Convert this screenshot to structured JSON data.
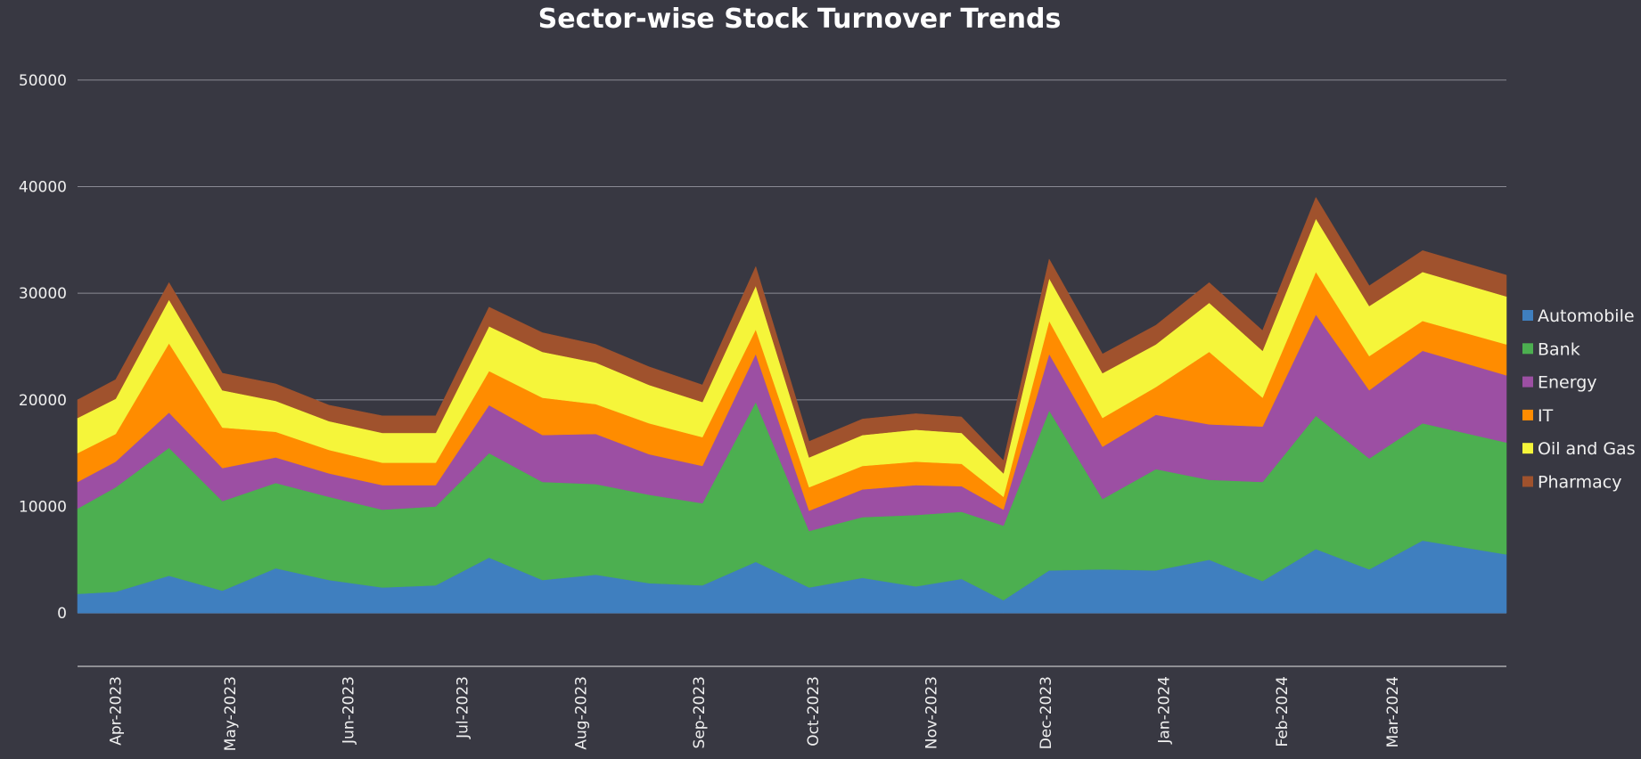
{
  "chart_data": {
    "type": "area",
    "stacked": true,
    "title": "Sector-wise Stock Turnover Trends",
    "xlabel": "",
    "ylabel": "",
    "ylim": [
      -5000,
      55000
    ],
    "yticks": [
      0,
      10000,
      20000,
      30000,
      40000,
      50000
    ],
    "y_tick_labels": [
      "0",
      "10000",
      "20000",
      "30000",
      "40000",
      "50000"
    ],
    "xlim": [
      "2023-03-22",
      "2024-03-31"
    ],
    "x_ticks": [
      "2023-04-01",
      "2023-05-01",
      "2023-06-01",
      "2023-07-01",
      "2023-08-01",
      "2023-09-01",
      "2023-10-01",
      "2023-11-01",
      "2023-12-01",
      "2024-01-01",
      "2024-02-01",
      "2024-03-01"
    ],
    "x_tick_labels": [
      "Apr-2023",
      "May-2023",
      "Jun-2023",
      "Jul-2023",
      "Aug-2023",
      "Sep-2023",
      "Oct-2023",
      "Nov-2023",
      "Dec-2023",
      "Jan-2024",
      "Feb-2024",
      "Mar-2024"
    ],
    "grid": true,
    "legend_position": "right",
    "dates": [
      "2023-03-22",
      "2023-04-01",
      "2023-04-15",
      "2023-04-29",
      "2023-05-13",
      "2023-05-27",
      "2023-06-10",
      "2023-06-24",
      "2023-07-08",
      "2023-07-22",
      "2023-08-05",
      "2023-08-19",
      "2023-09-02",
      "2023-09-16",
      "2023-09-30",
      "2023-10-14",
      "2023-10-28",
      "2023-11-09",
      "2023-11-20",
      "2023-12-02",
      "2023-12-16",
      "2023-12-30",
      "2024-01-13",
      "2024-01-27",
      "2024-02-10",
      "2024-02-24",
      "2024-03-09",
      "2024-03-31"
    ],
    "series": [
      {
        "name": "Automobile",
        "color": "#3f7fbf",
        "values": [
          1800,
          2000,
          3500,
          2100,
          4200,
          3100,
          2400,
          2600,
          5200,
          3100,
          3600,
          2800,
          2600,
          4800,
          2400,
          3300,
          2500,
          3200,
          1200,
          4000,
          4100,
          4000,
          5000,
          3000,
          6000,
          4100,
          6800,
          5500
        ]
      },
      {
        "name": "Bank",
        "color": "#4caf50",
        "values": [
          8000,
          9800,
          12000,
          8400,
          8000,
          7800,
          7300,
          7400,
          9800,
          9200,
          8500,
          8300,
          7700,
          15000,
          5300,
          5700,
          6700,
          6300,
          7000,
          15000,
          6600,
          9500,
          7500,
          9300,
          12500,
          10400,
          11000,
          10500
        ]
      },
      {
        "name": "Energy",
        "color": "#9c4fa3",
        "values": [
          2500,
          2400,
          3300,
          3100,
          2400,
          2200,
          2300,
          2000,
          4500,
          4400,
          4700,
          3800,
          3500,
          4500,
          1900,
          2600,
          2800,
          2400,
          1500,
          5300,
          4900,
          5100,
          5200,
          5200,
          9500,
          6400,
          6800,
          6300
        ]
      },
      {
        "name": "IT",
        "color": "#ff8c00",
        "values": [
          2700,
          2600,
          6500,
          3800,
          2400,
          2200,
          2100,
          2100,
          3200,
          3500,
          2800,
          2900,
          2700,
          2300,
          2200,
          2200,
          2200,
          2100,
          1200,
          3100,
          2700,
          2600,
          6800,
          2700,
          4000,
          3200,
          2800,
          2900
        ]
      },
      {
        "name": "Oil and Gas",
        "color": "#f5f53a",
        "values": [
          3300,
          3300,
          4100,
          3500,
          2900,
          2700,
          2800,
          2800,
          4200,
          4300,
          3900,
          3600,
          3300,
          4100,
          2800,
          2900,
          3000,
          2900,
          2200,
          4000,
          4200,
          4000,
          4600,
          4400,
          5000,
          4700,
          4600,
          4500
        ]
      },
      {
        "name": "Pharmacy",
        "color": "#a0522d",
        "values": [
          1700,
          1800,
          1600,
          1600,
          1600,
          1500,
          1600,
          1600,
          1800,
          1800,
          1700,
          1700,
          1600,
          1800,
          1500,
          1500,
          1500,
          1500,
          1200,
          1800,
          1800,
          1800,
          1900,
          1900,
          2000,
          1900,
          2000,
          2000
        ]
      }
    ]
  }
}
